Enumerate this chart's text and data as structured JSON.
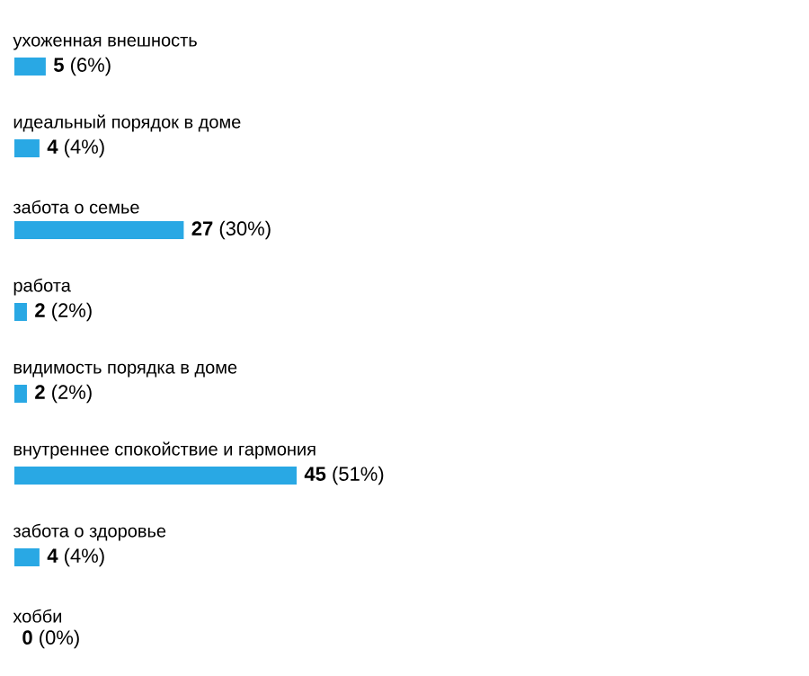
{
  "chart_data": {
    "type": "bar",
    "orientation": "horizontal",
    "categories": [
      "ухоженная внешность",
      "идеальный порядок в доме",
      "забота о семье",
      "работа",
      "видимость порядка в доме",
      "внутреннее спокойствие и гармония",
      "забота о здоровье",
      "хобби"
    ],
    "values": [
      5,
      4,
      27,
      2,
      2,
      45,
      4,
      0
    ],
    "value_labels": [
      "**5** (6%)",
      "**4** (4%)",
      "**27** (30%)",
      "**2** (2%)",
      "**2** (2%)",
      "**45** (51%)",
      "**4** (4%)",
      "**0** (0%)"
    ],
    "color": "#29a8e4"
  }
}
